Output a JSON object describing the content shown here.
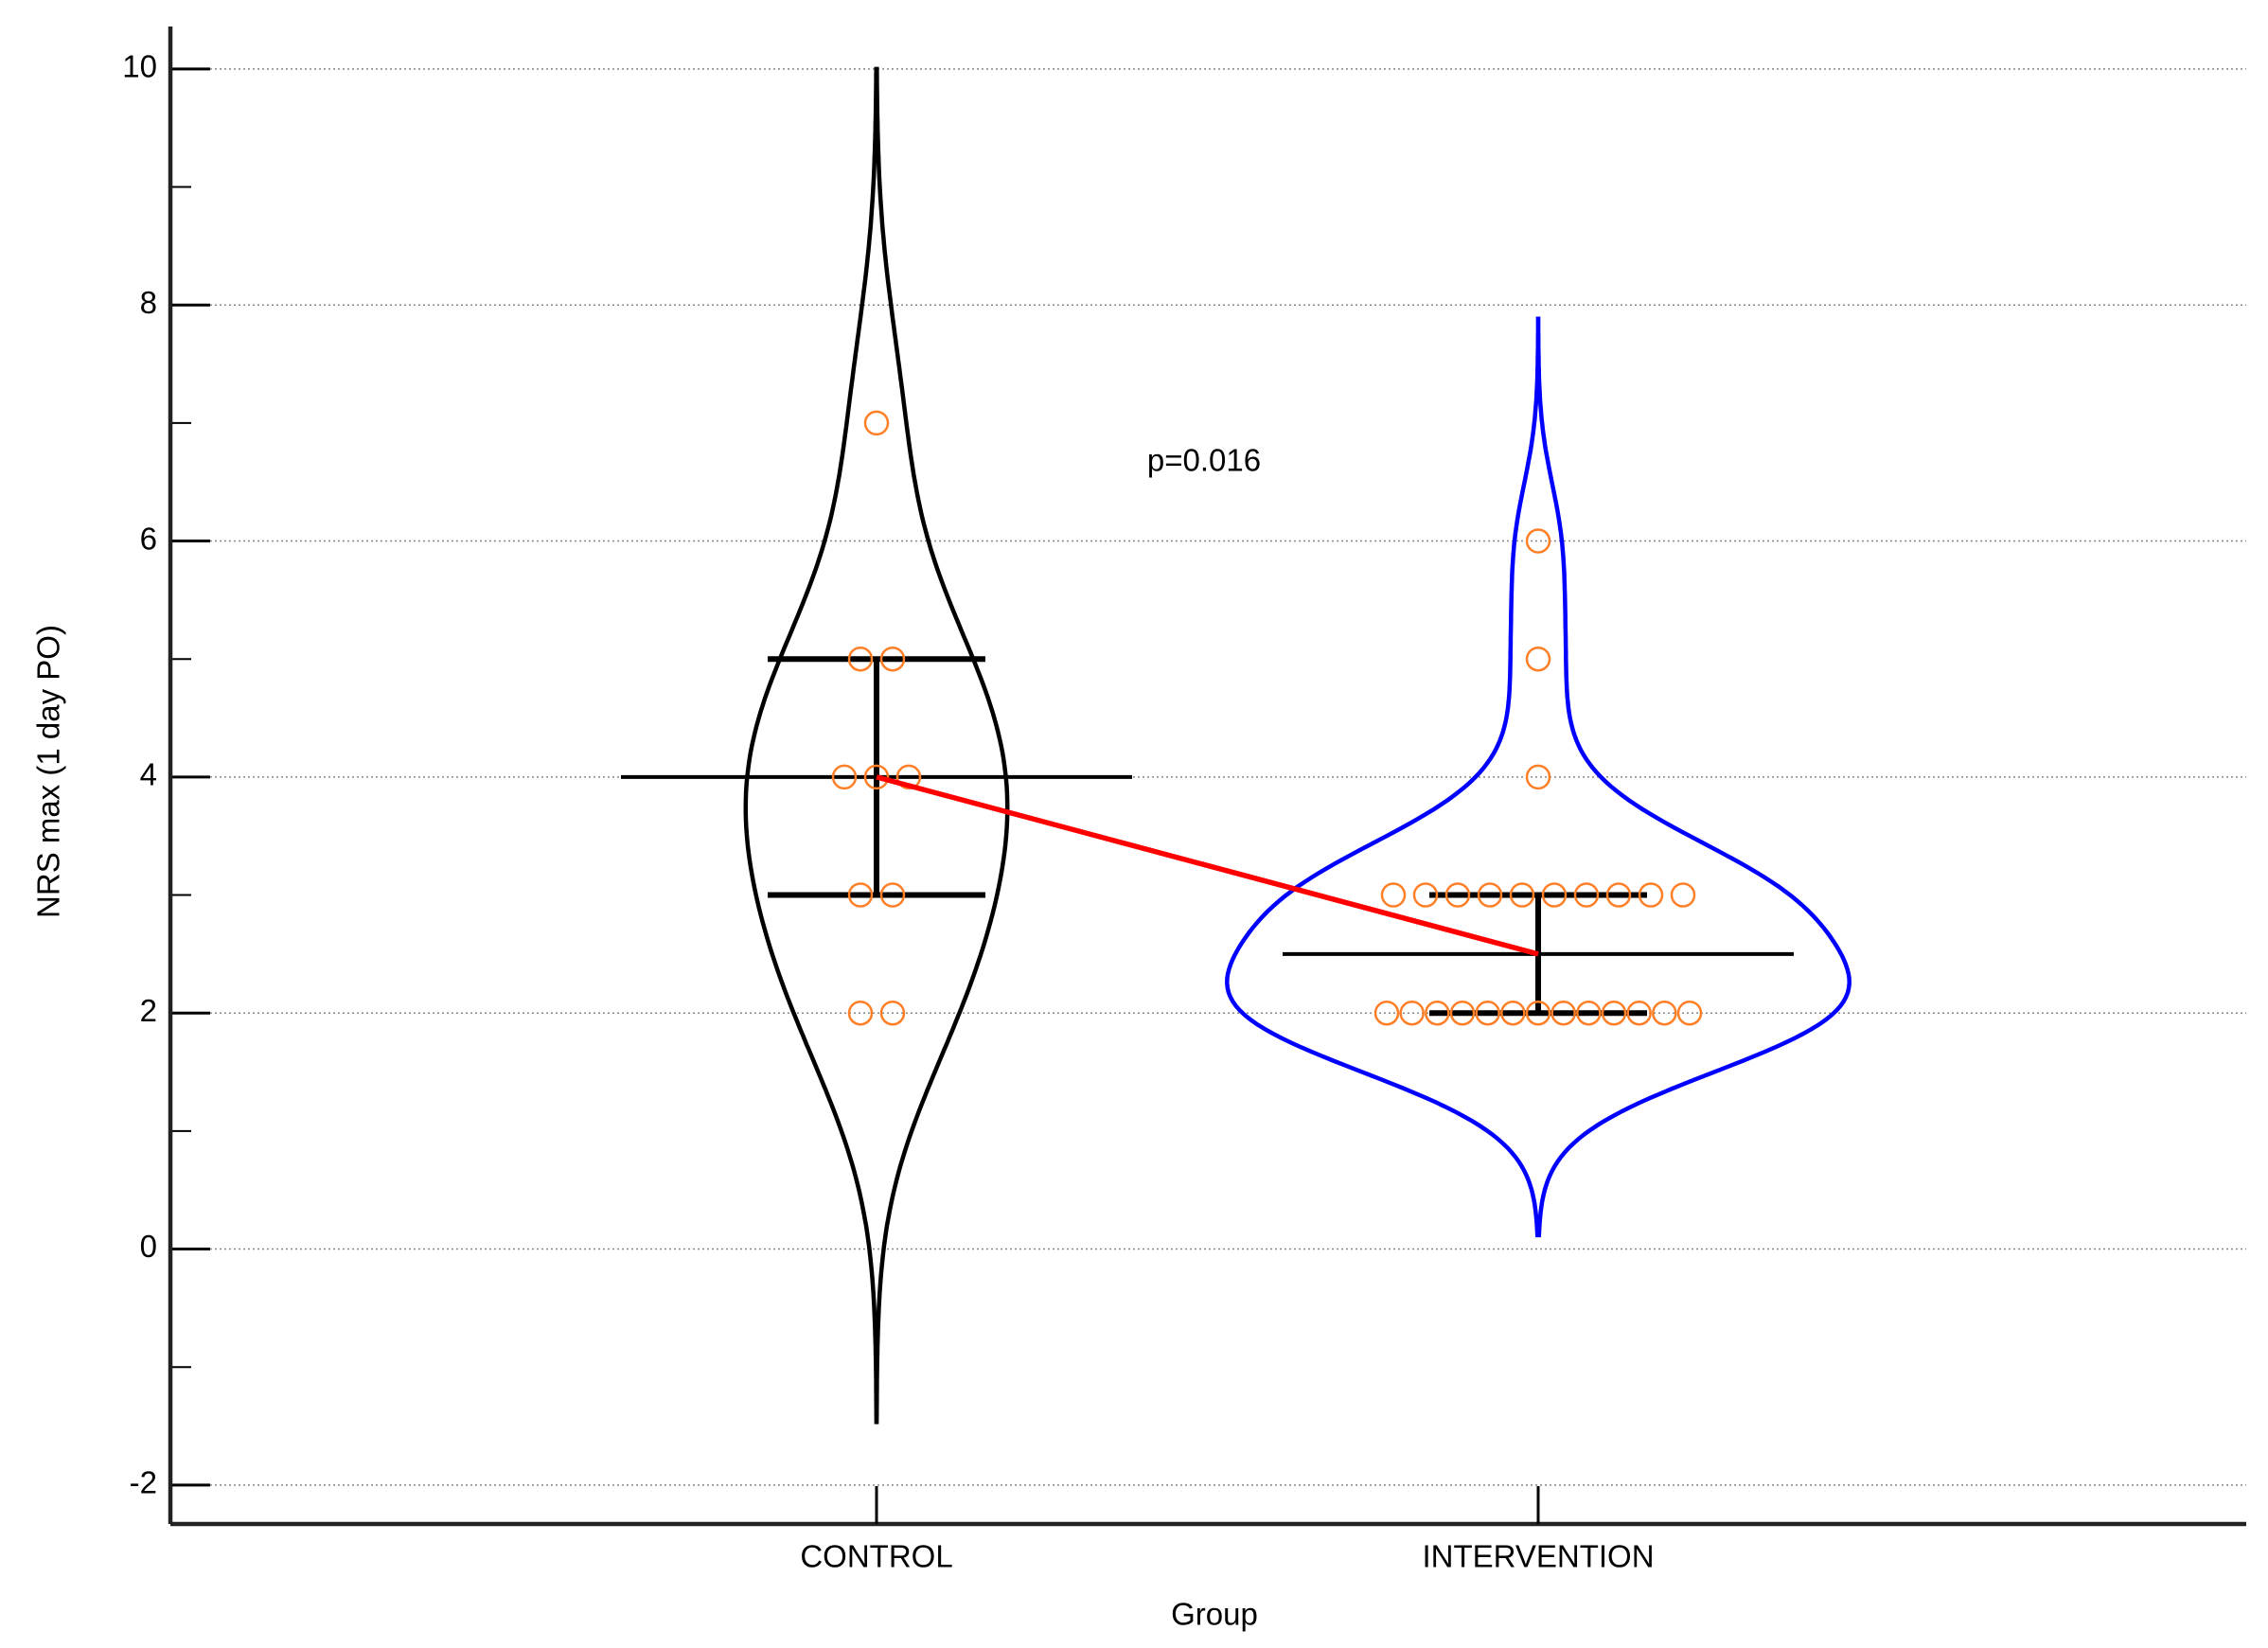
{
  "chart_data": {
    "type": "violin",
    "y_label": "NRS max  (1 day PO)",
    "x_label": "Group",
    "annotation": "p=0.016",
    "categories": [
      "CONTROL",
      "INTERVENTION"
    ],
    "groups": [
      {
        "color": "#000000",
        "values": [
          7,
          5,
          5,
          4,
          4,
          4,
          3,
          3,
          2,
          2
        ],
        "median": 4,
        "q1": 3,
        "q3": 5
      },
      {
        "color": "#0000ff",
        "values": [
          6,
          5,
          4,
          3,
          3,
          3,
          3,
          3,
          3,
          3,
          3,
          3,
          3,
          2,
          2,
          2,
          2,
          2,
          2,
          2,
          2,
          2,
          2,
          2,
          2,
          2
        ],
        "median": 2.5,
        "q1": 2,
        "q3": 3
      }
    ],
    "point_color": "#ff7f27",
    "median_line_color": "#ff0000",
    "ylim": [
      -2.33,
      10.36
    ],
    "yticks": [
      -2,
      0,
      2,
      4,
      6,
      8,
      10
    ],
    "yminorticks": [
      -1,
      1,
      3,
      5,
      7,
      9
    ],
    "grid": true
  }
}
